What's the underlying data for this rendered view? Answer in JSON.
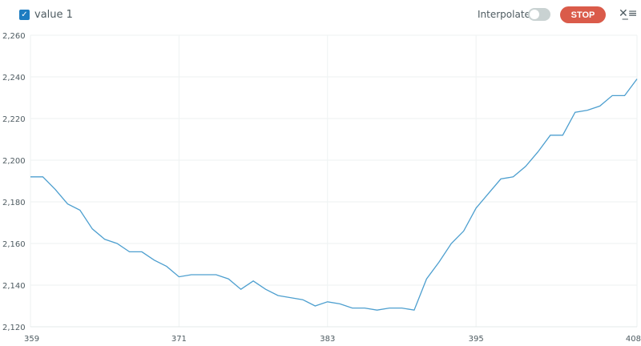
{
  "header": {
    "legend_label": "value 1",
    "legend_checked": true,
    "interpolate_label": "Interpolate",
    "interpolate_on": false,
    "stop_label": "STOP",
    "clear_icon": "clear-list-icon",
    "stop_color": "#da5b4a",
    "series_color": "#4d9fcf"
  },
  "chart_data": {
    "type": "line",
    "xlim": [
      359,
      408
    ],
    "ylim": [
      2120,
      2260
    ],
    "x_ticks": [
      "359",
      "371",
      "383",
      "395",
      "408"
    ],
    "y_ticks": [
      "2,120",
      "2,140",
      "2,160",
      "2,180",
      "2,200",
      "2,220",
      "2,240",
      "2,260"
    ],
    "grid": true,
    "series": [
      {
        "name": "value 1",
        "x": [
          359,
          360,
          361,
          362,
          363,
          364,
          365,
          366,
          367,
          368,
          369,
          370,
          371,
          372,
          373,
          374,
          375,
          376,
          377,
          378,
          379,
          380,
          381,
          382,
          383,
          384,
          385,
          386,
          387,
          388,
          389,
          390,
          391,
          392,
          393,
          394,
          395,
          396,
          397,
          398,
          399,
          400,
          401,
          402,
          403,
          404,
          405,
          406,
          407,
          408
        ],
        "values": [
          2192,
          2192,
          2186,
          2179,
          2176,
          2167,
          2162,
          2160,
          2156,
          2156,
          2152,
          2149,
          2144,
          2145,
          2145,
          2145,
          2143,
          2138,
          2142,
          2138,
          2135,
          2134,
          2133,
          2130,
          2132,
          2131,
          2129,
          2129,
          2128,
          2129,
          2129,
          2128,
          2143,
          2151,
          2160,
          2166,
          2177,
          2184,
          2191,
          2192,
          2197,
          2204,
          2212,
          2212,
          2223,
          2224,
          2226,
          2231,
          2231,
          2239
        ]
      }
    ]
  }
}
